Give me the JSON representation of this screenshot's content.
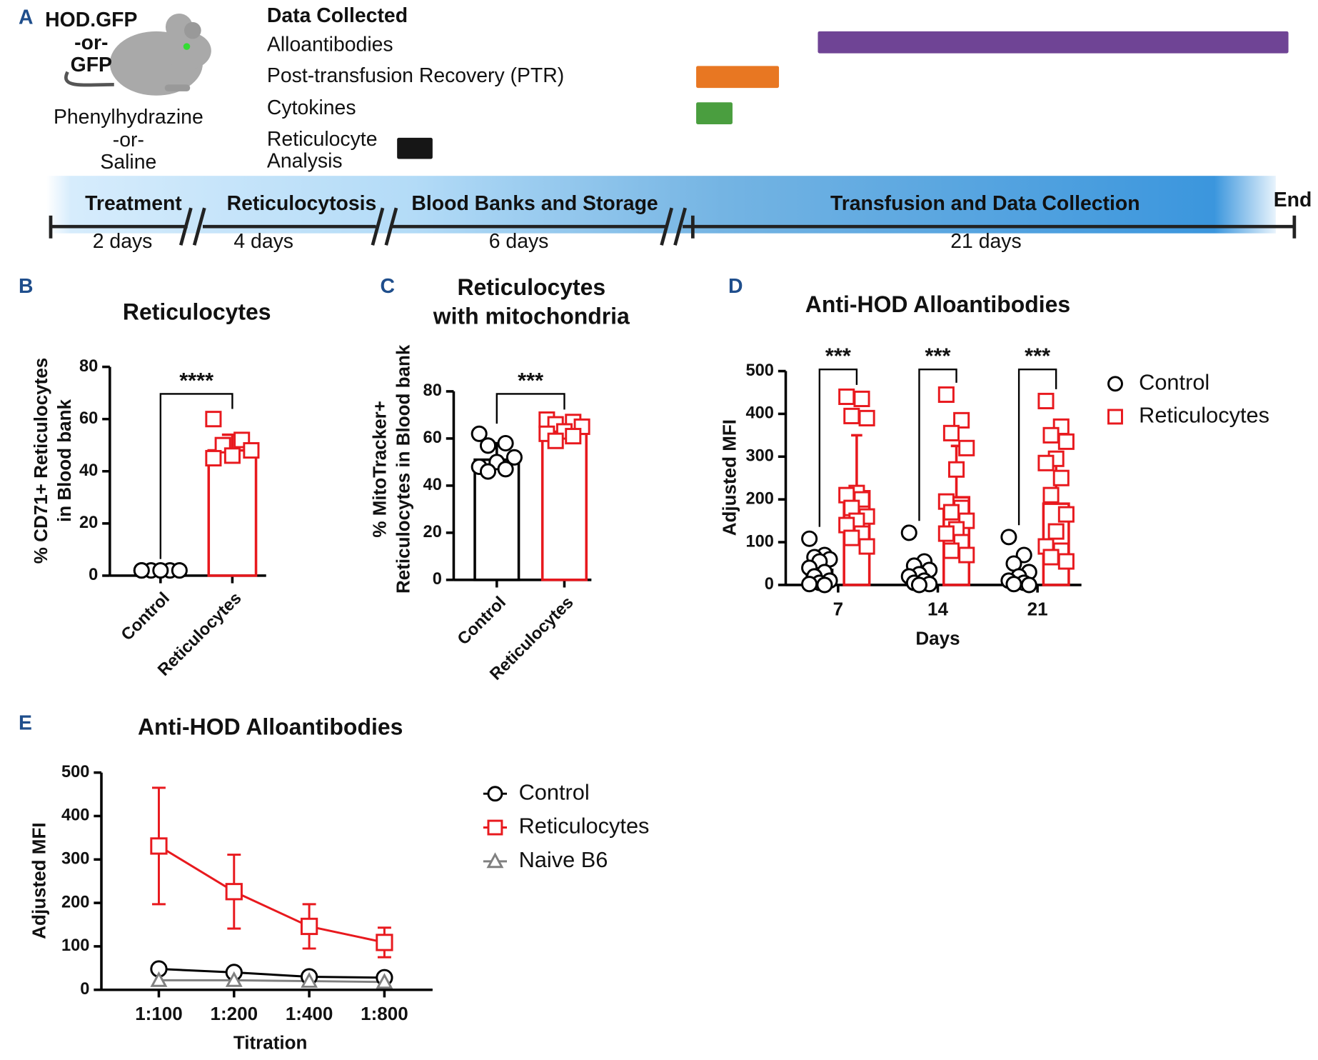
{
  "panels": [
    "A",
    "B",
    "C",
    "D",
    "E"
  ],
  "timeline": {
    "mouse_label": [
      "HOD.GFP",
      "-or-",
      "GFP"
    ],
    "treatment_label": [
      "Phenylhydrazine",
      "-or-",
      "Saline"
    ],
    "data_collected": {
      "title": "Data Collected",
      "items": [
        {
          "label": [
            "Alloantibodies"
          ],
          "color": "#6f4495"
        },
        {
          "label": [
            "Post-transfusion Recovery (PTR)"
          ],
          "color": "#e87722"
        },
        {
          "label": [
            "Cytokines"
          ],
          "color": "#4a9e3f"
        },
        {
          "label": [
            "Reticulocyte",
            "Analysis"
          ],
          "color": "#161616"
        }
      ]
    },
    "phases": [
      {
        "name": "Treatment",
        "duration": "2 days"
      },
      {
        "name": "Reticulocytosis",
        "duration": "4 days"
      },
      {
        "name": "Blood Banks and Storage",
        "duration": "6 days"
      },
      {
        "name": "Transfusion and Data Collection",
        "duration": "21 days"
      }
    ],
    "end": "End"
  },
  "chart_data": [
    {
      "type": "bar",
      "title": "Reticulocytes",
      "ylabel": [
        "% CD71+ Reticulocytes",
        "in Blood bank"
      ],
      "categories": [
        "Control",
        "Reticulocytes"
      ],
      "values": [
        2,
        48
      ],
      "errors": [
        0.5,
        6
      ],
      "points": [
        [
          2,
          2,
          2,
          2,
          2,
          2
        ],
        [
          60,
          52,
          50,
          48,
          46,
          45
        ]
      ],
      "colors": [
        "#000000",
        "#e8191e"
      ],
      "markers": [
        "circle",
        "square"
      ],
      "ylim": [
        0,
        80
      ],
      "yticks": [
        0,
        20,
        40,
        60,
        80
      ],
      "significance": "****"
    },
    {
      "type": "bar",
      "title": [
        "Reticulocytes",
        "with mitochondria"
      ],
      "ylabel": [
        "% MitoTracker+",
        "Reticulocytes in Blood bank"
      ],
      "categories": [
        "Control",
        "Reticulocytes"
      ],
      "values": [
        51,
        62
      ],
      "errors": [
        7,
        4
      ],
      "points": [
        [
          62,
          58,
          57,
          52,
          50,
          48,
          47,
          46
        ],
        [
          68,
          67,
          66,
          65,
          63,
          62,
          61,
          59
        ]
      ],
      "colors": [
        "#000000",
        "#e8191e"
      ],
      "markers": [
        "circle",
        "square"
      ],
      "ylim": [
        0,
        80
      ],
      "yticks": [
        0,
        20,
        40,
        60,
        80
      ],
      "significance": "***"
    },
    {
      "type": "bar",
      "title": "Anti-HOD Alloantibodies",
      "xlabel": "Days",
      "ylabel": "Adjusted MFI",
      "categories": [
        "7",
        "14",
        "21"
      ],
      "series": [
        {
          "name": "Control",
          "color": "#000000",
          "marker": "circle",
          "values": [
            35,
            25,
            20
          ],
          "errors": [
            8,
            6,
            5
          ],
          "points": [
            [
              108,
              70,
              65,
              60,
              55,
              40,
              30,
              20,
              10,
              5,
              2,
              0
            ],
            [
              122,
              55,
              45,
              35,
              25,
              20,
              10,
              5,
              2,
              0
            ],
            [
              112,
              70,
              50,
              30,
              20,
              10,
              5,
              2,
              0
            ]
          ]
        },
        {
          "name": "Reticulocytes",
          "color": "#e8191e",
          "marker": "square",
          "values": [
            219,
            205,
            190
          ],
          "errors": [
            131,
            120,
            100
          ],
          "points": [
            [
              440,
              435,
              395,
              390,
              215,
              210,
              200,
              180,
              160,
              150,
              140,
              120,
              110,
              90
            ],
            [
              445,
              385,
              355,
              320,
              270,
              195,
              180,
              170,
              150,
              130,
              120,
              100,
              80,
              70
            ],
            [
              430,
              370,
              350,
              335,
              295,
              285,
              250,
              210,
              165,
              125,
              90,
              80,
              65,
              55
            ]
          ]
        }
      ],
      "ylim": [
        0,
        500
      ],
      "yticks": [
        0,
        100,
        200,
        300,
        400,
        500
      ],
      "significance": [
        "***",
        "***",
        "***"
      ]
    },
    {
      "type": "line",
      "title": "Anti-HOD Alloantibodies",
      "xlabel": "Titration",
      "ylabel": "Adjusted MFI",
      "categories": [
        "1:100",
        "1:200",
        "1:400",
        "1:800"
      ],
      "series": [
        {
          "name": "Control",
          "color": "#000000",
          "marker": "circle",
          "values": [
            48,
            40,
            30,
            28
          ]
        },
        {
          "name": "Reticulocytes",
          "color": "#e8191e",
          "marker": "square",
          "values": [
            331,
            226,
            146,
            109
          ],
          "errors": [
            134,
            85,
            51,
            34
          ]
        },
        {
          "name": "Naive B6",
          "color": "#808080",
          "marker": "triangle",
          "values": [
            22,
            22,
            20,
            18
          ]
        }
      ],
      "ylim": [
        0,
        500
      ],
      "yticks": [
        0,
        100,
        200,
        300,
        400,
        500
      ]
    }
  ]
}
